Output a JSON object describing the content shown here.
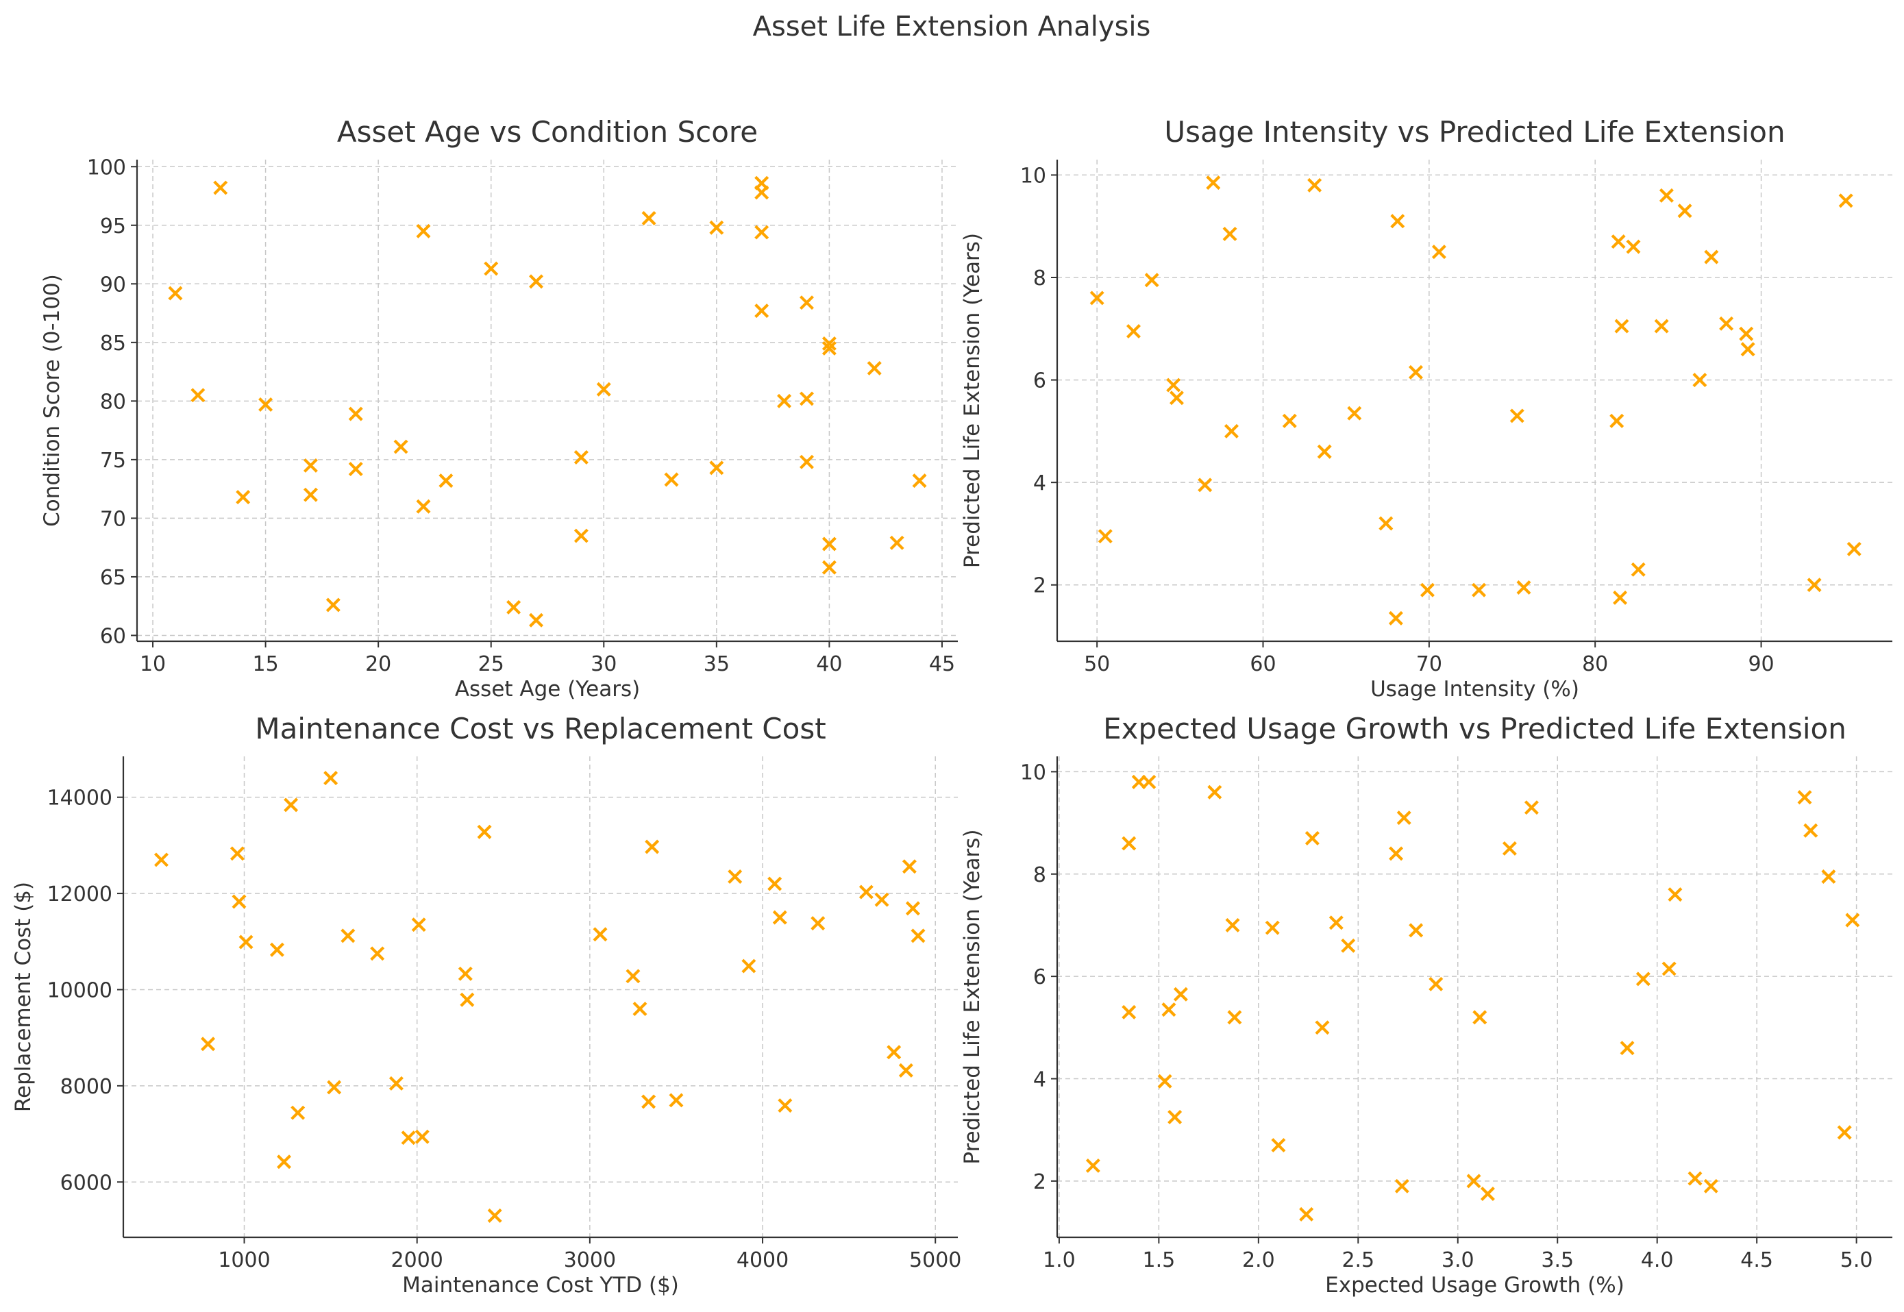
{
  "figure": {
    "title": "Asset Life Extension Analysis",
    "marker_color": "#FFA500",
    "marker": "x-icon"
  },
  "chart_data": [
    {
      "type": "scatter",
      "title": "Asset Age vs Condition Score",
      "xlabel": "Asset Age (Years)",
      "ylabel": "Condition Score (0-100)",
      "xlim": [
        9.3,
        45.7
      ],
      "ylim": [
        59.5,
        100.6
      ],
      "xticks": [
        10,
        15,
        20,
        25,
        30,
        35,
        40,
        45
      ],
      "yticks": [
        60,
        65,
        70,
        75,
        80,
        85,
        90,
        95,
        100
      ],
      "xtick_labels": [
        "10",
        "15",
        "20",
        "25",
        "30",
        "35",
        "40",
        "45"
      ],
      "ytick_labels": [
        "60",
        "65",
        "70",
        "75",
        "80",
        "85",
        "90",
        "95",
        "100"
      ],
      "points": [
        [
          11,
          89.2
        ],
        [
          12,
          80.5
        ],
        [
          13,
          98.2
        ],
        [
          14,
          71.8
        ],
        [
          15,
          79.7
        ],
        [
          17,
          74.5
        ],
        [
          17,
          72.0
        ],
        [
          18,
          62.6
        ],
        [
          19,
          78.9
        ],
        [
          19,
          74.2
        ],
        [
          21,
          76.1
        ],
        [
          22,
          94.5
        ],
        [
          22,
          71.0
        ],
        [
          23,
          73.2
        ],
        [
          25,
          91.3
        ],
        [
          26,
          62.4
        ],
        [
          27,
          90.2
        ],
        [
          27,
          61.3
        ],
        [
          29,
          75.2
        ],
        [
          29,
          68.5
        ],
        [
          30,
          81.0
        ],
        [
          32,
          95.6
        ],
        [
          33,
          73.3
        ],
        [
          35,
          94.8
        ],
        [
          35,
          74.3
        ],
        [
          37,
          98.6
        ],
        [
          37,
          97.8
        ],
        [
          37,
          94.4
        ],
        [
          37,
          87.7
        ],
        [
          38,
          80.0
        ],
        [
          39,
          88.4
        ],
        [
          39,
          80.2
        ],
        [
          39,
          74.8
        ],
        [
          40,
          84.9
        ],
        [
          40,
          84.5
        ],
        [
          40,
          67.8
        ],
        [
          40,
          65.8
        ],
        [
          42,
          82.8
        ],
        [
          43,
          67.9
        ],
        [
          44,
          73.2
        ]
      ]
    },
    {
      "type": "scatter",
      "title": "Usage Intensity vs Predicted Life Extension",
      "xlabel": "Usage Intensity (%)",
      "ylabel": "Predicted Life Extension (Years)",
      "xlim": [
        47.6,
        97.9
      ],
      "ylim": [
        0.9,
        10.3
      ],
      "xticks": [
        50,
        60,
        70,
        80,
        90
      ],
      "yticks": [
        2,
        4,
        6,
        8,
        10
      ],
      "xtick_labels": [
        "50",
        "60",
        "70",
        "80",
        "90"
      ],
      "ytick_labels": [
        "2",
        "4",
        "6",
        "8",
        "10"
      ],
      "points": [
        [
          50.0,
          7.6
        ],
        [
          50.5,
          2.95
        ],
        [
          52.2,
          6.95
        ],
        [
          53.3,
          7.95
        ],
        [
          54.6,
          5.9
        ],
        [
          54.8,
          5.65
        ],
        [
          56.5,
          3.95
        ],
        [
          57.0,
          9.85
        ],
        [
          58.0,
          8.85
        ],
        [
          58.1,
          5.0
        ],
        [
          61.6,
          5.2
        ],
        [
          63.1,
          9.8
        ],
        [
          63.7,
          4.6
        ],
        [
          65.5,
          5.35
        ],
        [
          67.4,
          3.2
        ],
        [
          68.1,
          9.1
        ],
        [
          68.0,
          1.35
        ],
        [
          69.2,
          6.15
        ],
        [
          69.9,
          1.9
        ],
        [
          70.6,
          8.5
        ],
        [
          73.0,
          1.9
        ],
        [
          75.3,
          5.3
        ],
        [
          75.7,
          1.95
        ],
        [
          81.4,
          8.7
        ],
        [
          81.6,
          7.05
        ],
        [
          81.3,
          5.2
        ],
        [
          81.5,
          1.75
        ],
        [
          82.3,
          8.6
        ],
        [
          82.6,
          2.3
        ],
        [
          84.0,
          7.05
        ],
        [
          84.3,
          9.6
        ],
        [
          85.4,
          9.3
        ],
        [
          86.3,
          6.0
        ],
        [
          87.0,
          8.4
        ],
        [
          87.9,
          7.1
        ],
        [
          89.1,
          6.9
        ],
        [
          89.2,
          6.6
        ],
        [
          93.2,
          2.0
        ],
        [
          95.1,
          9.5
        ],
        [
          95.6,
          2.7
        ]
      ]
    },
    {
      "type": "scatter",
      "title": "Maintenance Cost vs Replacement Cost",
      "xlabel": "Maintenance Cost YTD ($)",
      "ylabel": "Replacement Cost ($)",
      "xlim": [
        300,
        5130
      ],
      "ylim": [
        4850,
        14850
      ],
      "xticks": [
        1000,
        2000,
        3000,
        4000,
        5000
      ],
      "yticks": [
        6000,
        8000,
        10000,
        12000,
        14000
      ],
      "xtick_labels": [
        "1000",
        "2000",
        "3000",
        "4000",
        "5000"
      ],
      "ytick_labels": [
        "6000",
        "8000",
        "10000",
        "12000",
        "14000"
      ],
      "points": [
        [
          520,
          12700
        ],
        [
          790,
          8870
        ],
        [
          960,
          12830
        ],
        [
          970,
          11830
        ],
        [
          1010,
          10990
        ],
        [
          1190,
          10830
        ],
        [
          1230,
          6420
        ],
        [
          1270,
          13840
        ],
        [
          1310,
          7440
        ],
        [
          1500,
          14400
        ],
        [
          1520,
          7970
        ],
        [
          1600,
          11120
        ],
        [
          1770,
          10750
        ],
        [
          1880,
          8050
        ],
        [
          1950,
          6920
        ],
        [
          2010,
          11350
        ],
        [
          2030,
          6940
        ],
        [
          2280,
          10330
        ],
        [
          2290,
          9790
        ],
        [
          2390,
          13280
        ],
        [
          2450,
          5300
        ],
        [
          3060,
          11150
        ],
        [
          3250,
          10280
        ],
        [
          3290,
          9600
        ],
        [
          3340,
          7670
        ],
        [
          3360,
          12970
        ],
        [
          3500,
          7700
        ],
        [
          3840,
          12350
        ],
        [
          3920,
          10490
        ],
        [
          4070,
          12200
        ],
        [
          4100,
          11500
        ],
        [
          4130,
          7590
        ],
        [
          4320,
          11380
        ],
        [
          4600,
          12030
        ],
        [
          4690,
          11870
        ],
        [
          4760,
          8700
        ],
        [
          4830,
          8320
        ],
        [
          4850,
          12560
        ],
        [
          4870,
          11690
        ],
        [
          4900,
          11120
        ]
      ]
    },
    {
      "type": "scatter",
      "title": "Expected Usage Growth vs Predicted Life Extension",
      "xlabel": "Expected Usage Growth (%)",
      "ylabel": "Predicted Life Extension (Years)",
      "xlim": [
        0.99,
        5.18
      ],
      "ylim": [
        0.9,
        10.3
      ],
      "xticks": [
        1.0,
        1.5,
        2.0,
        2.5,
        3.0,
        3.5,
        4.0,
        4.5,
        5.0
      ],
      "yticks": [
        2,
        4,
        6,
        8,
        10
      ],
      "xtick_labels": [
        "1.0",
        "1.5",
        "2.0",
        "2.5",
        "3.0",
        "3.5",
        "4.0",
        "4.5",
        "5.0"
      ],
      "ytick_labels": [
        "2",
        "4",
        "6",
        "8",
        "10"
      ],
      "points": [
        [
          1.17,
          2.3
        ],
        [
          1.35,
          8.6
        ],
        [
          1.35,
          5.3
        ],
        [
          1.4,
          9.8
        ],
        [
          1.45,
          9.8
        ],
        [
          1.53,
          3.95
        ],
        [
          1.55,
          5.35
        ],
        [
          1.58,
          3.25
        ],
        [
          1.61,
          5.65
        ],
        [
          1.78,
          9.6
        ],
        [
          1.87,
          7.0
        ],
        [
          1.88,
          5.2
        ],
        [
          2.07,
          6.95
        ],
        [
          2.1,
          2.7
        ],
        [
          2.24,
          1.35
        ],
        [
          2.27,
          8.7
        ],
        [
          2.32,
          5.0
        ],
        [
          2.39,
          7.05
        ],
        [
          2.45,
          6.6
        ],
        [
          2.69,
          8.4
        ],
        [
          2.72,
          1.9
        ],
        [
          2.73,
          9.1
        ],
        [
          2.79,
          6.9
        ],
        [
          2.89,
          5.85
        ],
        [
          3.08,
          2.0
        ],
        [
          3.11,
          5.2
        ],
        [
          3.15,
          1.75
        ],
        [
          3.26,
          8.5
        ],
        [
          3.37,
          9.3
        ],
        [
          3.85,
          4.6
        ],
        [
          3.93,
          5.95
        ],
        [
          4.06,
          6.15
        ],
        [
          4.09,
          7.6
        ],
        [
          4.19,
          2.05
        ],
        [
          4.27,
          1.9
        ],
        [
          4.74,
          9.5
        ],
        [
          4.77,
          8.85
        ],
        [
          4.86,
          7.95
        ],
        [
          4.94,
          2.95
        ],
        [
          4.98,
          7.1
        ]
      ]
    }
  ]
}
